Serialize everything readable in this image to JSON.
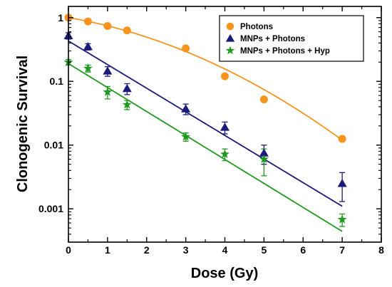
{
  "chart_data": {
    "type": "scatter",
    "title": "",
    "xlabel": "Dose (Gy)",
    "ylabel": "Clonogenic Survival",
    "xlim": [
      0,
      8
    ],
    "ylim": [
      0.0003,
      1.5
    ],
    "yscale": "log",
    "x_ticks": [
      0,
      1,
      2,
      3,
      4,
      5,
      6,
      7,
      8
    ],
    "x_tick_labels": [
      "0",
      "1",
      "2",
      "3",
      "4",
      "5",
      "6",
      "7",
      "8"
    ],
    "y_ticks": [
      1,
      0.1,
      0.01,
      0.001
    ],
    "y_tick_labels": [
      "1",
      "0.1",
      "0.01",
      "0.001"
    ],
    "grid": false,
    "legend_position": "top-right",
    "series": [
      {
        "name": "Photons",
        "color": "#f7941d",
        "marker": "circle",
        "x": [
          0,
          0.5,
          1,
          1.5,
          3,
          4,
          5,
          7
        ],
        "y": [
          1.0,
          0.87,
          0.74,
          0.63,
          0.33,
          0.12,
          0.052,
          0.0125
        ],
        "err": [
          0,
          0,
          0,
          0,
          0,
          0,
          0,
          0
        ],
        "fit": {
          "model": "linear-quadratic",
          "S0": 1.0,
          "alpha": 0.24,
          "beta": 0.056
        }
      },
      {
        "name": "MNPs + Photons",
        "color": "#1a1a7a",
        "marker": "triangle",
        "x": [
          0,
          0.5,
          1,
          1.5,
          3,
          4,
          5,
          7
        ],
        "y": [
          0.52,
          0.35,
          0.145,
          0.077,
          0.037,
          0.019,
          0.0075,
          0.0025
        ],
        "err": [
          0.06,
          0.04,
          0.025,
          0.015,
          0.007,
          0.004,
          0.0025,
          0.0012
        ],
        "fit": {
          "model": "exponential",
          "S0": 0.43,
          "alpha": 0.853,
          "beta": 0
        }
      },
      {
        "name": "MNPs + Photons + Hyp",
        "color": "#1e9a1e",
        "marker": "star",
        "x": [
          0,
          0.5,
          1,
          1.5,
          3,
          4,
          5,
          7
        ],
        "y": [
          0.2,
          0.16,
          0.068,
          0.043,
          0.0135,
          0.0072,
          0.006,
          0.00068
        ],
        "err": [
          0.02,
          0.02,
          0.015,
          0.007,
          0.002,
          0.0015,
          0.0027,
          0.00015
        ],
        "fit": {
          "model": "exponential",
          "S0": 0.19,
          "alpha": 0.866,
          "beta": 0
        }
      }
    ]
  }
}
